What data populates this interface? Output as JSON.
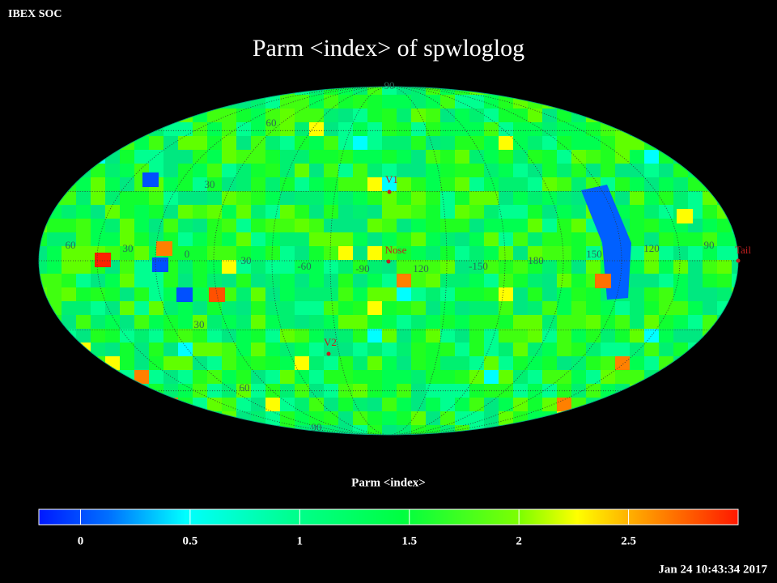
{
  "header": {
    "source": "IBEX SOC",
    "timestamp": "Jan 24 10:43:34 2017"
  },
  "chart_data": {
    "type": "skymap",
    "title": "Parm  <index> of spwloglog",
    "projection": "mollweide",
    "grid_labels": [
      "90",
      "60",
      "30",
      "60",
      "30",
      "0",
      "30",
      "-60",
      "-90",
      "120",
      "-150",
      "180",
      "150",
      "120",
      "90",
      "30",
      "60",
      "90"
    ],
    "markers": [
      "V1",
      "Nose",
      "V2",
      "Tail"
    ],
    "colorbar": {
      "label": "Parm  <index>",
      "lim": [
        -0.19,
        3.0
      ],
      "ticks": [
        0,
        0.5,
        1,
        1.5,
        2,
        2.5
      ]
    }
  }
}
